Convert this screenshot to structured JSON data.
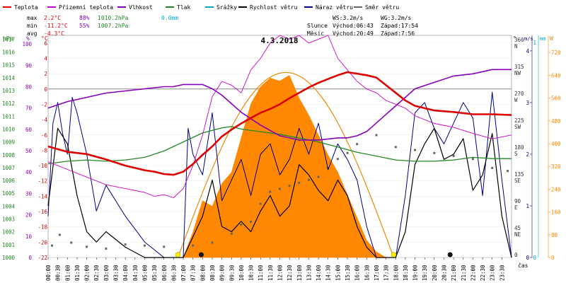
{
  "chart_data": {
    "type": "line",
    "title": "4.3.2018",
    "legend": [
      {
        "name": "Teplota",
        "color": "#dd0000"
      },
      {
        "name": "Přízemní teplota",
        "color": "#cc00cc"
      },
      {
        "name": "Vlhkost",
        "color": "#8800bb"
      },
      {
        "name": "Tlak",
        "color": "#228822"
      },
      {
        "name": "Srážky",
        "color": "#00aacc"
      },
      {
        "name": "Rychlost větru",
        "color": "#000000"
      },
      {
        "name": "Náraz větru",
        "color": "#000088"
      },
      {
        "name": "Směr větru",
        "color": "#666666"
      }
    ],
    "stats": {
      "max_label": "max",
      "min_label": "min",
      "avg_label": "avg",
      "max_temp": "2.2°C",
      "max_hum": "88%",
      "max_press": "1010.2hPa",
      "max_rain": "0.0mm",
      "min_temp": "-11.2°C",
      "min_hum": "55%",
      "min_press": "1007.2hPa",
      "avg_temp": "-4.3°C"
    },
    "wind_stats": {
      "ws": "WS:3.2m/s",
      "wg": "WG:3.2m/s"
    },
    "sun_moon": {
      "sun_label": "Slunce",
      "sun_rise": "Východ:06:43",
      "sun_set": "Západ:17:54",
      "moon_label": "Měsíc",
      "moon_rise": "Východ:20:49",
      "moon_set": "Západ:7:56"
    },
    "axis_units": {
      "pressure": "hPa",
      "humidity": "%",
      "temperature": "°C",
      "direction": "°",
      "wind": "m/s",
      "rain": "mm",
      "solar": "W",
      "time": "čas"
    },
    "pressure_ticks": [
      1000,
      1001,
      1002,
      1003,
      1004,
      1005,
      1006,
      1007,
      1008,
      1009,
      1010,
      1011,
      1012,
      1013,
      1014,
      1015,
      1016,
      1017
    ],
    "humidity_ticks": [
      0,
      10,
      20,
      30,
      40,
      50,
      60,
      70,
      80,
      90,
      100
    ],
    "temperature_ticks": [
      -22,
      -20,
      -18,
      -16,
      -14,
      -12,
      -10,
      -8,
      -6,
      -4,
      -2,
      0,
      2,
      4,
      6
    ],
    "direction_ticks": [
      {
        "deg": 0,
        "label": "0",
        "dir": ""
      },
      {
        "deg": 45,
        "label": "45",
        "dir": "NE"
      },
      {
        "deg": 90,
        "label": "90",
        "dir": "E"
      },
      {
        "deg": 135,
        "label": "135",
        "dir": "SE"
      },
      {
        "deg": 180,
        "label": "180",
        "dir": "S"
      },
      {
        "deg": 225,
        "label": "225",
        "dir": "SW"
      },
      {
        "deg": 270,
        "label": "270",
        "dir": "W"
      },
      {
        "deg": 315,
        "label": "315",
        "dir": "NW"
      },
      {
        "deg": 360,
        "label": "360",
        "dir": "N"
      }
    ],
    "wind_ticks": [
      0,
      1,
      2,
      3,
      4
    ],
    "rain_ticks": [
      0,
      1
    ],
    "solar_ticks": [
      0,
      80,
      160,
      240,
      320,
      400,
      480,
      560,
      640,
      720
    ],
    "time_labels": [
      "00:00",
      "00:30",
      "01:00",
      "01:30",
      "02:00",
      "02:30",
      "03:00",
      "03:30",
      "04:00",
      "04:30",
      "05:00",
      "05:30",
      "06:00",
      "06:30",
      "07:00",
      "07:30",
      "08:00",
      "08:30",
      "09:00",
      "09:30",
      "10:00",
      "10:30",
      "11:00",
      "11:30",
      "12:00",
      "12:30",
      "13:00",
      "13:30",
      "14:00",
      "14:30",
      "15:00",
      "15:30",
      "16:00",
      "16:30",
      "17:00",
      "17:30",
      "18:00",
      "18:30",
      "19:00",
      "19:30",
      "20:00",
      "20:30",
      "21:00",
      "21:30",
      "22:00",
      "22:30",
      "23:00",
      "23:30"
    ],
    "series": {
      "temperature": {
        "x_hours": [
          0,
          1,
          2,
          3,
          4,
          5,
          5.5,
          6,
          6.5,
          7,
          7.5,
          8,
          8.5,
          9,
          9.5,
          10,
          10.5,
          11,
          11.5,
          12,
          12.5,
          13,
          13.5,
          14,
          14.5,
          15,
          15.5,
          16,
          16.5,
          17,
          17.5,
          18,
          18.5,
          19,
          20,
          21,
          22,
          23,
          24
        ],
        "values": [
          -7.5,
          -8.2,
          -8.5,
          -9.2,
          -10.0,
          -10.6,
          -10.8,
          -11.1,
          -11.2,
          -10.8,
          -9.8,
          -8.6,
          -7.5,
          -6.2,
          -5.3,
          -4.5,
          -3.8,
          -3.1,
          -2.6,
          -2.0,
          -1.2,
          -0.5,
          0.2,
          0.8,
          1.3,
          1.8,
          2.2,
          2.0,
          1.8,
          1.5,
          0.5,
          -0.5,
          -1.5,
          -2.2,
          -2.8,
          -3.0,
          -3.3,
          -3.3,
          -3.4
        ]
      },
      "ground_temperature": {
        "x_hours": [
          0,
          1,
          2,
          3,
          4,
          5,
          5.5,
          6,
          6.5,
          7,
          7.5,
          8,
          8.5,
          9,
          9.5,
          10,
          10.5,
          11,
          11.5,
          12,
          12.5,
          13,
          13.5,
          14,
          14.5,
          15,
          15.5,
          16,
          16.5,
          17,
          17.5,
          18,
          18.5,
          19,
          20,
          21,
          22,
          23,
          24
        ],
        "values": [
          -9.5,
          -10.5,
          -11.5,
          -12.5,
          -13.0,
          -13.5,
          -14.0,
          -13.8,
          -14.2,
          -13.0,
          -10.0,
          -6.0,
          -1.0,
          1.0,
          0.5,
          -0.5,
          2.5,
          4.0,
          6.0,
          7.0,
          6.5,
          7.0,
          6.0,
          6.5,
          7.0,
          4.0,
          2.5,
          1.0,
          0.0,
          -0.5,
          -1.5,
          -2.0,
          -2.5,
          -3.5,
          -4.5,
          -5.0,
          -5.8,
          -6.5,
          -6.0
        ]
      },
      "humidity": {
        "x_hours": [
          0,
          1,
          2,
          3,
          4,
          5,
          6,
          6.5,
          7,
          7.5,
          8,
          8.5,
          9,
          9.5,
          10,
          11,
          12,
          13,
          14,
          15,
          15.5,
          16,
          16.5,
          17,
          17.5,
          18,
          18.5,
          19,
          20,
          21,
          22,
          23,
          24
        ],
        "values": [
          70,
          73,
          75,
          77,
          78,
          79,
          80,
          80,
          81,
          81,
          81,
          79,
          76,
          72,
          68,
          62,
          57,
          55,
          55,
          56,
          56,
          57,
          59,
          63,
          67,
          71,
          75,
          79,
          82,
          85,
          86,
          88,
          88
        ]
      },
      "pressure": {
        "x_hours": [
          0,
          1,
          2,
          3,
          4,
          5,
          6,
          7,
          8,
          9,
          9.5,
          10,
          11,
          12,
          13,
          14,
          15,
          16,
          17,
          18,
          19,
          20,
          21,
          22,
          23,
          24
        ],
        "values": [
          1007.3,
          1007.5,
          1007.6,
          1007.5,
          1007.6,
          1007.8,
          1008.3,
          1009.0,
          1009.7,
          1010.1,
          1010.2,
          1010.0,
          1009.8,
          1009.6,
          1009.3,
          1009.0,
          1008.6,
          1008.2,
          1007.9,
          1007.6,
          1007.5,
          1007.5,
          1007.6,
          1007.8,
          1007.7,
          1007.7
        ]
      },
      "solar_radiation": {
        "x_hours": [
          7,
          7.5,
          8,
          8.5,
          9,
          9.5,
          10,
          10.5,
          11,
          11.5,
          12,
          12.5,
          13,
          13.5,
          14,
          14.5,
          15,
          15.5,
          16,
          16.5,
          17,
          17.5
        ],
        "values": [
          0,
          90,
          200,
          180,
          260,
          300,
          420,
          540,
          600,
          630,
          620,
          640,
          560,
          500,
          430,
          360,
          300,
          220,
          140,
          60,
          20,
          0
        ]
      },
      "solar_theoretical_max": 650,
      "wind_speed": {
        "x_hours": [
          0,
          0.5,
          1,
          1.5,
          2,
          2.5,
          3,
          4,
          5,
          6,
          7,
          7.5,
          8,
          8.5,
          9,
          9.5,
          10,
          10.5,
          11,
          11.5,
          12,
          12.5,
          13,
          13.5,
          14,
          14.5,
          15,
          15.5,
          16,
          16.5,
          17,
          17.5,
          18,
          18.5,
          19,
          19.5,
          20,
          20.5,
          21,
          21.5,
          22,
          22.5,
          23,
          23.5,
          24
        ],
        "values": [
          1.0,
          2.5,
          2.2,
          1.2,
          0.5,
          0.3,
          0.5,
          0.2,
          0.0,
          0.0,
          0.0,
          0.4,
          0.8,
          1.5,
          0.6,
          0.5,
          0.7,
          0.5,
          0.9,
          1.2,
          0.8,
          1.0,
          1.8,
          1.6,
          1.3,
          1.1,
          1.5,
          1.2,
          0.6,
          0.2,
          0.0,
          0.0,
          0.0,
          0.5,
          1.8,
          2.2,
          2.5,
          1.9,
          2.0,
          2.3,
          1.3,
          1.6,
          2.4,
          0.8,
          0.0
        ]
      },
      "wind_gust": {
        "x_hours": [
          0,
          0.25,
          0.5,
          0.75,
          1,
          1.25,
          1.5,
          2,
          2.5,
          3,
          4,
          5,
          6,
          7,
          7.25,
          7.5,
          8,
          8.5,
          9,
          9.5,
          10,
          10.5,
          11,
          11.5,
          12,
          12.5,
          13,
          13.5,
          14,
          14.5,
          15,
          15.5,
          16,
          16.5,
          17,
          17.5,
          18,
          18.5,
          19,
          19.5,
          20,
          20.5,
          21,
          21.5,
          22,
          22.5,
          23,
          23.5,
          24
        ],
        "values": [
          0.8,
          2.6,
          3.0,
          2.4,
          2.0,
          3.1,
          2.8,
          2.0,
          0.9,
          1.4,
          0.8,
          0.3,
          0.0,
          0.0,
          2.5,
          2.0,
          1.6,
          2.8,
          1.1,
          1.5,
          1.9,
          1.2,
          2.0,
          2.2,
          1.6,
          1.9,
          2.5,
          2.0,
          2.6,
          1.7,
          2.2,
          1.9,
          1.5,
          0.6,
          0.0,
          0.0,
          0.0,
          1.2,
          2.8,
          3.0,
          2.5,
          2.2,
          2.6,
          3.0,
          2.7,
          1.2,
          3.2,
          1.5,
          0.0
        ]
      },
      "wind_direction": {
        "x_hours": [
          0.2,
          0.6,
          1.2,
          2.0,
          3.0,
          4.0,
          5.0,
          6.0,
          7.5,
          8.5,
          9.5,
          10.0,
          10.5,
          11.0,
          11.5,
          12.0,
          12.5,
          13.0,
          13.5,
          14.0,
          14.5,
          15.0,
          15.5,
          16.0,
          17.0,
          18.0,
          19.0,
          20.0,
          21.0,
          22.0,
          23.0,
          23.8
        ],
        "values": [
          20,
          38,
          25,
          18,
          15,
          22,
          20,
          18,
          20,
          25,
          40,
          55,
          60,
          90,
          110,
          115,
          120,
          125,
          130,
          135,
          150,
          165,
          175,
          190,
          205,
          185,
          180,
          175,
          170,
          165,
          150,
          145
        ]
      },
      "sun_events_hours": [
        6.72,
        17.9
      ],
      "moon_events_hours": [
        7.93,
        20.82
      ]
    }
  }
}
